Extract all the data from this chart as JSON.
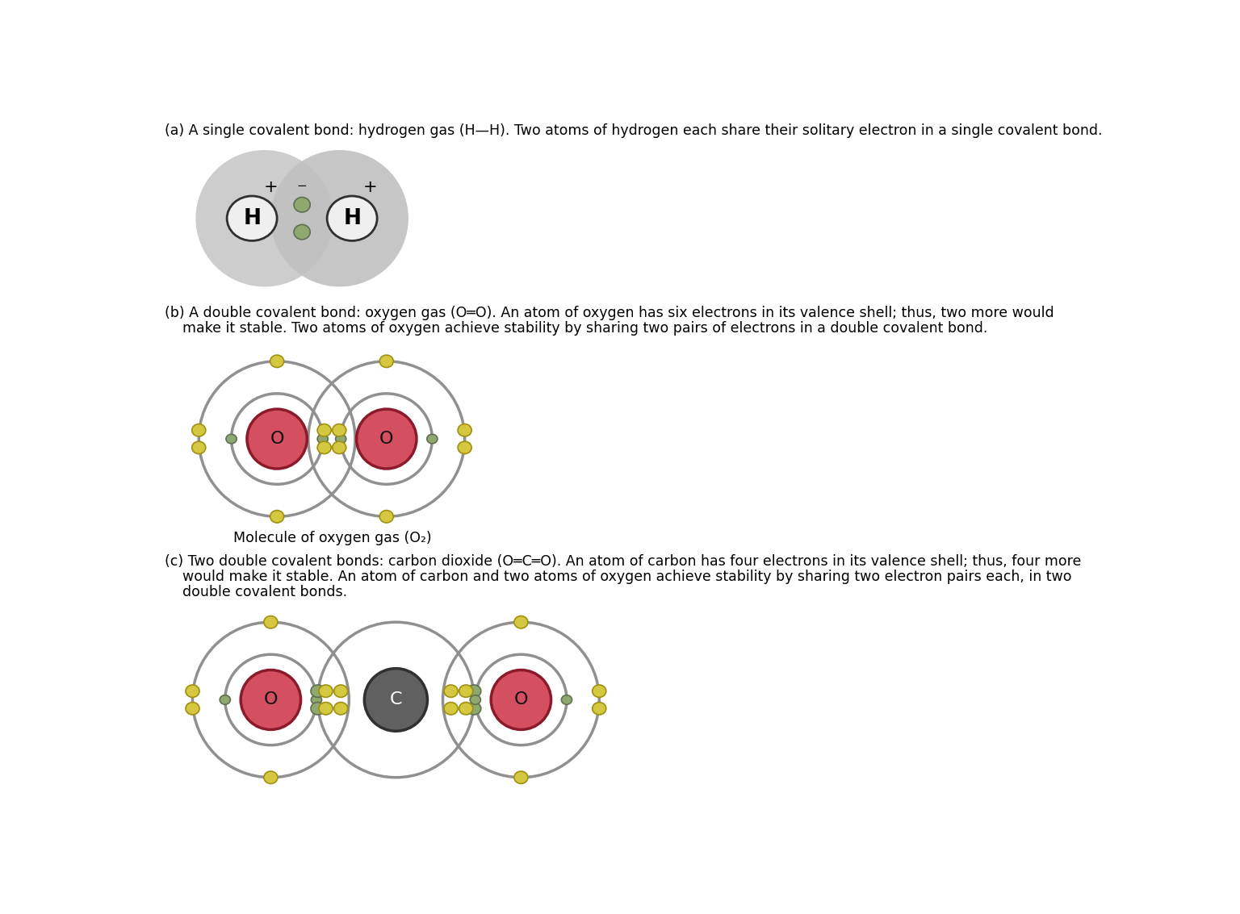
{
  "background": "#ffffff",
  "text_color": "#000000",
  "panel_a_label": "(a) A single covalent bond: hydrogen gas (H—H). Two atoms of hydrogen each share their solitary electron in a single covalent bond.",
  "panel_b_label_1": "(b) A double covalent bond: oxygen gas (O═O). An atom of oxygen has six electrons in its valence shell; thus, two more would",
  "panel_b_label_2": "    make it stable. Two atoms of oxygen achieve stability by sharing two pairs of electrons in a double covalent bond.",
  "panel_b_caption": "Molecule of oxygen gas (O₂)",
  "panel_c_label_1": "(c) Two double covalent bonds: carbon dioxide (O═C═O). An atom of carbon has four electrons in its valence shell; thus, four more",
  "panel_c_label_2": "    would make it stable. An atom of carbon and two atoms of oxygen achieve stability by sharing two electron pairs each, in two",
  "panel_c_label_3": "    double covalent bonds.",
  "gray_blob_color": "#c8c8c8",
  "h_nucleus_color": "#f0f0f0",
  "o_nucleus_color": "#d45060",
  "o_nucleus_border": "#8b1a2a",
  "o_electron_outer_color": "#d4c840",
  "o_electron_outer_ec": "#a09010",
  "o_electron_inner_color": "#8fa870",
  "o_electron_inner_ec": "#607050",
  "c_nucleus_color": "#606060",
  "c_nucleus_border": "#303030",
  "ring_color": "#909090",
  "font_size_label": 12.5
}
